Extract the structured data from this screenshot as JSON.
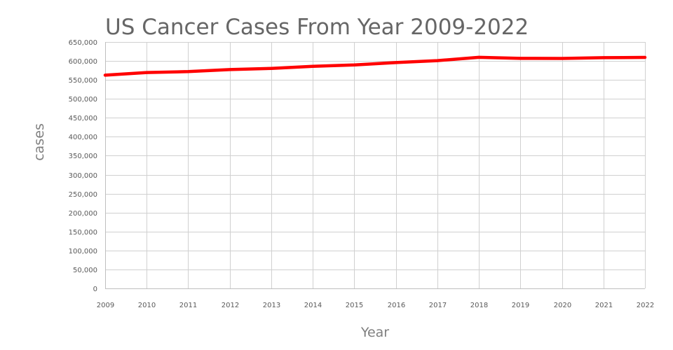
{
  "chart_data": {
    "type": "line",
    "title": "US Cancer Cases From Year 2009-2022",
    "xlabel": "Year",
    "ylabel": "cases",
    "x": [
      2009,
      2010,
      2011,
      2012,
      2013,
      2014,
      2015,
      2016,
      2017,
      2018,
      2019,
      2020,
      2021,
      2022
    ],
    "series": [
      {
        "color": "#ff0000",
        "values": [
          562520,
          569490,
          571950,
          577190,
          580350,
          585720,
          589430,
          595690,
          600920,
          609640,
          606880,
          606520,
          608570,
          609360
        ]
      }
    ],
    "ylim": [
      0,
      650000
    ],
    "ytick_step": 50000,
    "grid": true,
    "legend": "none"
  }
}
